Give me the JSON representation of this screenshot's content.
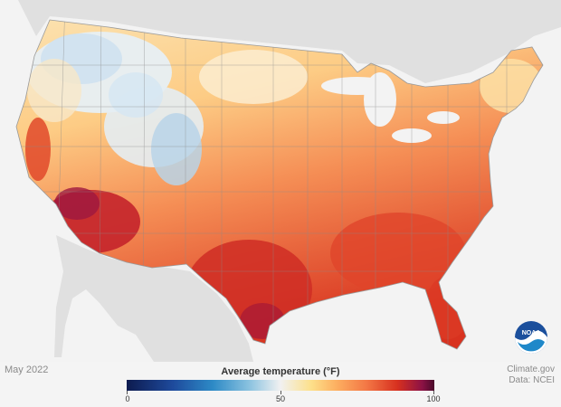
{
  "map": {
    "region": "Contiguous United States",
    "variable": "Average temperature",
    "unit": "°F",
    "logo_text": "NOAA"
  },
  "footer": {
    "date": "May 2022",
    "legend_title": "Average temperature (°F)",
    "ticks": [
      "0",
      "50",
      "100"
    ],
    "credit_line1": "Climate.gov",
    "credit_line2": "Data: NCEI"
  },
  "colors": {
    "background_land": "#e2e2e2",
    "cold": "#2d8ac6",
    "neutral": "#f1f1f1",
    "warm": "#fdb061",
    "hot": "#d7301f",
    "hottest": "#4a0a2a"
  }
}
